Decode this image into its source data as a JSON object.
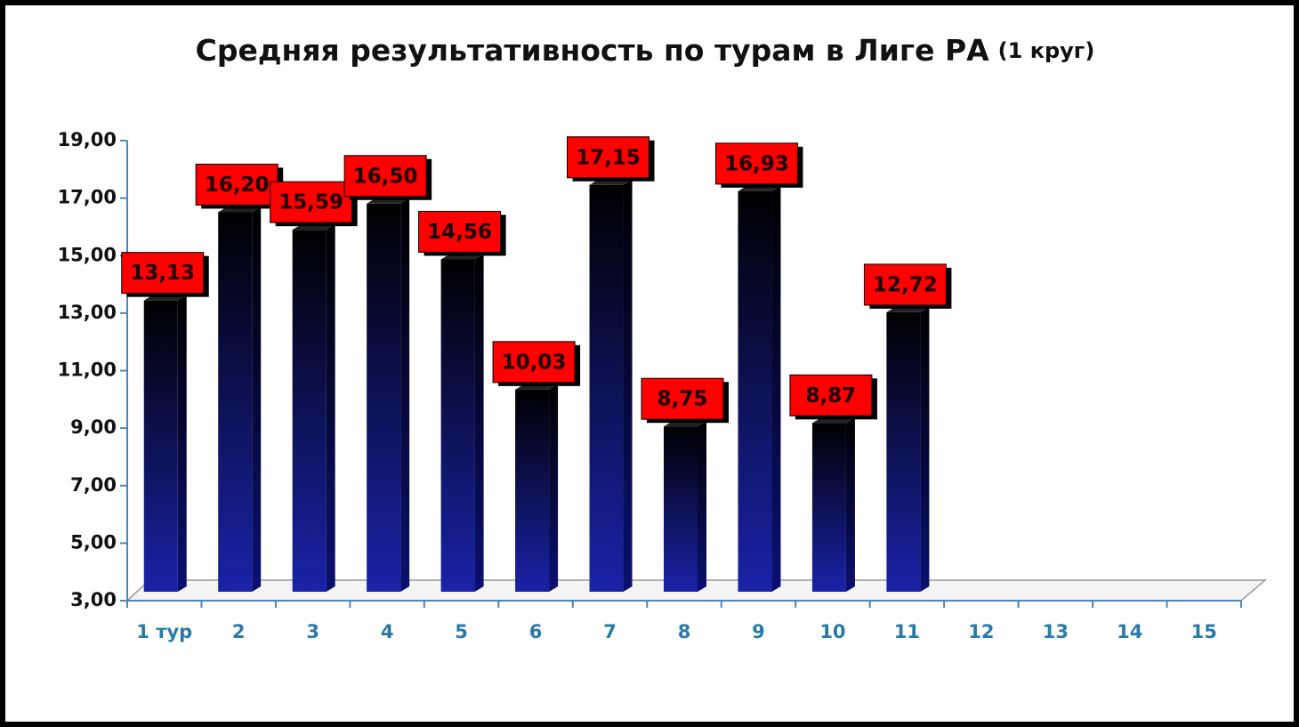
{
  "chart_data": {
    "type": "bar3d",
    "title": "Средняя результативность по турам в Лиге РА",
    "subtitle": "(1 круг)",
    "categories": [
      "1 тур",
      "2",
      "3",
      "4",
      "5",
      "6",
      "7",
      "8",
      "9",
      "10",
      "11",
      "12",
      "13",
      "14",
      "15"
    ],
    "values": [
      13.13,
      16.2,
      15.59,
      16.5,
      14.56,
      10.03,
      17.15,
      8.75,
      16.93,
      8.87,
      12.72,
      null,
      null,
      null,
      null
    ],
    "value_labels": [
      "13,13",
      "16,20",
      "15,59",
      "16,50",
      "14,56",
      "10,03",
      "17,15",
      "8,75",
      "16,93",
      "8,87",
      "12,72",
      null,
      null,
      null,
      null
    ],
    "color": "#1a22a8",
    "label_color": "#ff0000",
    "ylim": [
      3,
      19
    ],
    "yticks": [
      {
        "value": 3,
        "label": "3,00"
      },
      {
        "value": 5,
        "label": "5,00"
      },
      {
        "value": 7,
        "label": "7,00"
      },
      {
        "value": 9,
        "label": "9,00"
      },
      {
        "value": 11,
        "label": "11,00"
      },
      {
        "value": 13,
        "label": "13,00"
      },
      {
        "value": 15,
        "label": "15,00"
      },
      {
        "value": 17,
        "label": "17,00"
      },
      {
        "value": 19,
        "label": "19,00"
      }
    ],
    "grid": false
  }
}
